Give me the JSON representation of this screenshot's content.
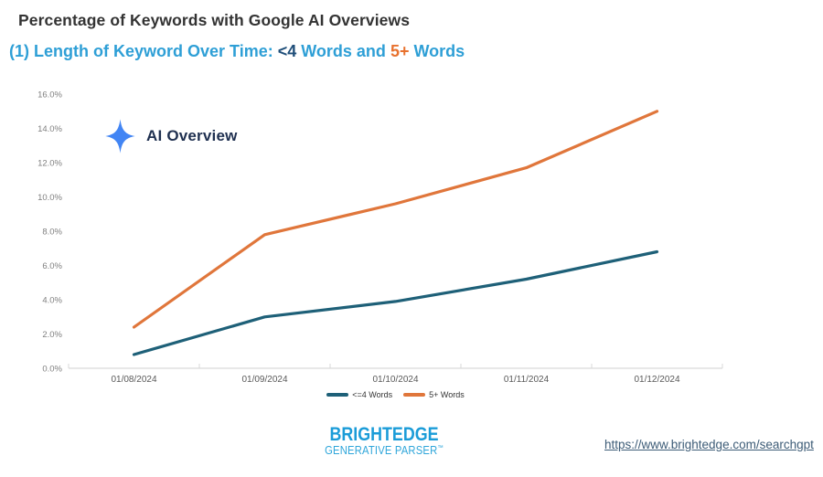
{
  "header": {
    "title": "Percentage of Keywords with Google AI Overviews",
    "subtitle_prefix": "(1) Length of Keyword Over Time: ",
    "subtitle_lt4": "<4",
    "subtitle_mid": " Words and ",
    "subtitle_5plus": "5+",
    "subtitle_suffix": " Words"
  },
  "overlay": {
    "ai_overview_label": "AI Overview"
  },
  "chart_data": {
    "type": "line",
    "categories": [
      "01/08/2024",
      "01/09/2024",
      "01/10/2024",
      "01/11/2024",
      "01/12/2024"
    ],
    "series": [
      {
        "name": "<=4 Words",
        "color": "#1E6078",
        "values": [
          0.8,
          3.0,
          3.9,
          5.2,
          6.8
        ]
      },
      {
        "name": "5+ Words",
        "color": "#E0763B",
        "values": [
          2.4,
          7.8,
          9.6,
          11.7,
          15.0
        ]
      }
    ],
    "y_ticks": [
      "0.0%",
      "2.0%",
      "4.0%",
      "6.0%",
      "8.0%",
      "10.0%",
      "12.0%",
      "14.0%",
      "16.0%"
    ],
    "ylim": [
      0,
      16
    ],
    "grid": false,
    "legend_position": "bottom",
    "annotation": "AI Overview"
  },
  "colors": {
    "title": "#333333",
    "subtitle_blue": "#2E9FD6",
    "subtitle_navy": "#1F4E79",
    "subtitle_orange": "#E8712E",
    "star_blue": "#4285F4",
    "axis_line": "#D9D9D9",
    "y_tick_label": "#7F7F7F",
    "x_tick_label": "#595959",
    "brand_blue": "#1B9CD8",
    "link": "#3D5C77"
  },
  "footer": {
    "brand_line1": "BRIGHTEDGE",
    "brand_line2": "GENERATIVE PARSER",
    "brand_tm": "™",
    "link_text": "https://www.brightedge.com/searchgpt"
  }
}
